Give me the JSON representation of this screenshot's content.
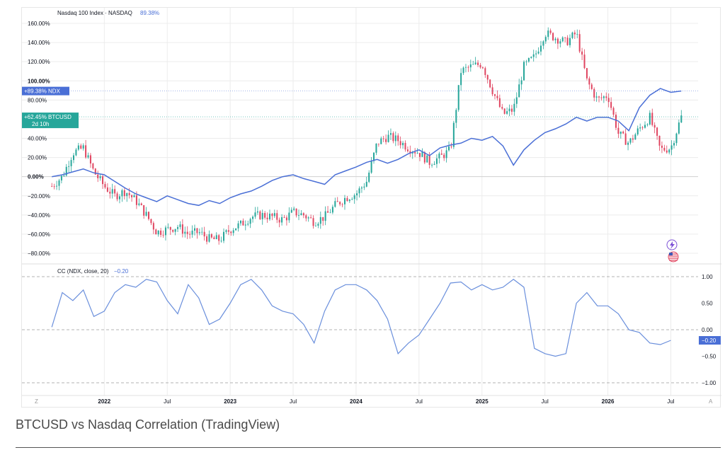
{
  "caption": "BTCUSD vs Nasdaq Correlation (TradingView)",
  "colors": {
    "ndx": "#4a6fd6",
    "up": "#26a69a",
    "down": "#e04560",
    "cc": "#6a8fdc",
    "grid": "#ececec"
  },
  "chart_data": [
    {
      "type": "line",
      "title": "Nasdaq 100 Index · NASDAQ",
      "title_value": "89.38%",
      "yticks": [
        "160.00%",
        "140.00%",
        "120.00%",
        "100.00%",
        "80.00%",
        "60.00%",
        "40.00%",
        "20.00%",
        "0.00%",
        "−20.00%",
        "−40.00%",
        "−60.00%",
        "−80.00%"
      ],
      "ylim": [
        -90,
        170
      ],
      "x_labels": [
        "2022",
        "Jul",
        "2023",
        "Jul",
        "2024",
        "Jul",
        "2025",
        "Jul",
        "2026",
        "Jul"
      ],
      "x_label_positions": [
        "2022-01",
        "2022-07",
        "2023-01",
        "2023-07",
        "2024-01",
        "2024-07",
        "2025-01",
        "2025-07",
        "2026-01",
        "2026-07"
      ],
      "series": [
        {
          "name": "NDX",
          "type": "line",
          "last_value": "+89.38%",
          "points": [
            [
              "2021-08",
              0
            ],
            [
              "2021-09",
              2
            ],
            [
              "2021-10",
              5
            ],
            [
              "2021-11",
              8
            ],
            [
              "2021-12",
              4
            ],
            [
              "2022-01",
              2
            ],
            [
              "2022-02",
              -5
            ],
            [
              "2022-03",
              -12
            ],
            [
              "2022-04",
              -18
            ],
            [
              "2022-05",
              -22
            ],
            [
              "2022-06",
              -26
            ],
            [
              "2022-07",
              -20
            ],
            [
              "2022-08",
              -24
            ],
            [
              "2022-09",
              -28
            ],
            [
              "2022-10",
              -30
            ],
            [
              "2022-11",
              -25
            ],
            [
              "2022-12",
              -28
            ],
            [
              "2023-01",
              -22
            ],
            [
              "2023-02",
              -18
            ],
            [
              "2023-03",
              -15
            ],
            [
              "2023-04",
              -10
            ],
            [
              "2023-05",
              -4
            ],
            [
              "2023-06",
              0
            ],
            [
              "2023-07",
              2
            ],
            [
              "2023-08",
              -2
            ],
            [
              "2023-09",
              -5
            ],
            [
              "2023-10",
              -8
            ],
            [
              "2023-11",
              2
            ],
            [
              "2023-12",
              6
            ],
            [
              "2024-01",
              10
            ],
            [
              "2024-02",
              15
            ],
            [
              "2024-03",
              18
            ],
            [
              "2024-04",
              14
            ],
            [
              "2024-05",
              18
            ],
            [
              "2024-06",
              24
            ],
            [
              "2024-07",
              28
            ],
            [
              "2024-08",
              22
            ],
            [
              "2024-09",
              30
            ],
            [
              "2024-10",
              33
            ],
            [
              "2024-11",
              35
            ],
            [
              "2024-12",
              40
            ],
            [
              "2025-01",
              38
            ],
            [
              "2025-02",
              42
            ],
            [
              "2025-03",
              32
            ],
            [
              "2025-04",
              12
            ],
            [
              "2025-05",
              28
            ],
            [
              "2025-06",
              38
            ],
            [
              "2025-07",
              46
            ],
            [
              "2025-08",
              50
            ],
            [
              "2025-09",
              55
            ],
            [
              "2025-10",
              62
            ],
            [
              "2025-11",
              58
            ],
            [
              "2025-12",
              62
            ],
            [
              "2026-01",
              62
            ],
            [
              "2026-02",
              58
            ],
            [
              "2026-03",
              48
            ],
            [
              "2026-04",
              72
            ],
            [
              "2026-05",
              85
            ],
            [
              "2026-06",
              92
            ],
            [
              "2026-07",
              88
            ],
            [
              "2026-08",
              89.38
            ]
          ]
        },
        {
          "name": "BTCUSD",
          "type": "candlestick",
          "last_value": "+62.45%",
          "countdown": "2d 10h",
          "closes": [
            [
              "2021-08",
              -10
            ],
            [
              "2021-09",
              0
            ],
            [
              "2021-10",
              25
            ],
            [
              "2021-11",
              30
            ],
            [
              "2021-12",
              5
            ],
            [
              "2022-01",
              -10
            ],
            [
              "2022-02",
              -20
            ],
            [
              "2022-03",
              -15
            ],
            [
              "2022-04",
              -25
            ],
            [
              "2022-05",
              -40
            ],
            [
              "2022-06",
              -58
            ],
            [
              "2022-07",
              -55
            ],
            [
              "2022-08",
              -52
            ],
            [
              "2022-09",
              -60
            ],
            [
              "2022-10",
              -58
            ],
            [
              "2022-11",
              -65
            ],
            [
              "2022-12",
              -66
            ],
            [
              "2023-01",
              -55
            ],
            [
              "2023-02",
              -50
            ],
            [
              "2023-03",
              -42
            ],
            [
              "2023-04",
              -40
            ],
            [
              "2023-05",
              -42
            ],
            [
              "2023-06",
              -45
            ],
            [
              "2023-07",
              -37
            ],
            [
              "2023-08",
              -40
            ],
            [
              "2023-09",
              -47
            ],
            [
              "2023-10",
              -42
            ],
            [
              "2023-11",
              -30
            ],
            [
              "2023-12",
              -22
            ],
            [
              "2024-01",
              -18
            ],
            [
              "2024-02",
              -5
            ],
            [
              "2024-03",
              35
            ],
            [
              "2024-04",
              42
            ],
            [
              "2024-05",
              38
            ],
            [
              "2024-06",
              30
            ],
            [
              "2024-07",
              25
            ],
            [
              "2024-08",
              15
            ],
            [
              "2024-09",
              20
            ],
            [
              "2024-10",
              28
            ],
            [
              "2024-11",
              110
            ],
            [
              "2024-12",
              115
            ],
            [
              "2025-01",
              118
            ],
            [
              "2025-02",
              90
            ],
            [
              "2025-03",
              65
            ],
            [
              "2025-04",
              70
            ],
            [
              "2025-05",
              115
            ],
            [
              "2025-06",
              125
            ],
            [
              "2025-07",
              150
            ],
            [
              "2025-08",
              145
            ],
            [
              "2025-09",
              140
            ],
            [
              "2025-10",
              150
            ],
            [
              "2025-11",
              100
            ],
            [
              "2025-12",
              80
            ],
            [
              "2026-01",
              85
            ],
            [
              "2026-02",
              45
            ],
            [
              "2026-03",
              35
            ],
            [
              "2026-04",
              50
            ],
            [
              "2026-05",
              62
            ],
            [
              "2026-06",
              28
            ],
            [
              "2026-07",
              30
            ],
            [
              "2026-08",
              62.45
            ]
          ]
        }
      ],
      "icons": [
        "lightning-icon",
        "us-flag-icon"
      ]
    },
    {
      "type": "line",
      "title": "CC (NDX, close, 20)",
      "title_value": "−0.20",
      "yticks": [
        "1.00",
        "0.50",
        "0.00",
        "−0.50",
        "−1.00"
      ],
      "ylim": [
        -1.1,
        1.1
      ],
      "dashed_levels": [
        1.0,
        0.0,
        -1.0
      ],
      "series": [
        {
          "name": "CC",
          "last_value": "−0.20",
          "points": [
            [
              "2021-08",
              0.05
            ],
            [
              "2021-09",
              0.7
            ],
            [
              "2021-10",
              0.55
            ],
            [
              "2021-11",
              0.75
            ],
            [
              "2021-12",
              0.25
            ],
            [
              "2022-01",
              0.35
            ],
            [
              "2022-02",
              0.7
            ],
            [
              "2022-03",
              0.85
            ],
            [
              "2022-04",
              0.8
            ],
            [
              "2022-05",
              0.95
            ],
            [
              "2022-06",
              0.9
            ],
            [
              "2022-07",
              0.55
            ],
            [
              "2022-08",
              0.3
            ],
            [
              "2022-09",
              0.85
            ],
            [
              "2022-10",
              0.6
            ],
            [
              "2022-11",
              0.1
            ],
            [
              "2022-12",
              0.2
            ],
            [
              "2023-01",
              0.5
            ],
            [
              "2023-02",
              0.85
            ],
            [
              "2023-03",
              0.95
            ],
            [
              "2023-04",
              0.75
            ],
            [
              "2023-05",
              0.45
            ],
            [
              "2023-06",
              0.35
            ],
            [
              "2023-07",
              0.3
            ],
            [
              "2023-08",
              0.1
            ],
            [
              "2023-09",
              -0.25
            ],
            [
              "2023-10",
              0.35
            ],
            [
              "2023-11",
              0.75
            ],
            [
              "2023-12",
              0.85
            ],
            [
              "2024-01",
              0.85
            ],
            [
              "2024-02",
              0.75
            ],
            [
              "2024-03",
              0.55
            ],
            [
              "2024-04",
              0.2
            ],
            [
              "2024-05",
              -0.45
            ],
            [
              "2024-06",
              -0.25
            ],
            [
              "2024-07",
              -0.1
            ],
            [
              "2024-08",
              0.2
            ],
            [
              "2024-09",
              0.5
            ],
            [
              "2024-10",
              0.88
            ],
            [
              "2024-11",
              0.9
            ],
            [
              "2024-12",
              0.75
            ],
            [
              "2025-01",
              0.85
            ],
            [
              "2025-02",
              0.75
            ],
            [
              "2025-03",
              0.8
            ],
            [
              "2025-04",
              0.95
            ],
            [
              "2025-05",
              0.8
            ],
            [
              "2025-06",
              -0.35
            ],
            [
              "2025-07",
              -0.45
            ],
            [
              "2025-08",
              -0.5
            ],
            [
              "2025-09",
              -0.45
            ],
            [
              "2025-10",
              0.5
            ],
            [
              "2025-11",
              0.7
            ],
            [
              "2025-12",
              0.45
            ],
            [
              "2026-01",
              0.45
            ],
            [
              "2026-02",
              0.3
            ],
            [
              "2026-03",
              0.0
            ],
            [
              "2026-04",
              -0.05
            ],
            [
              "2026-05",
              -0.25
            ],
            [
              "2026-06",
              -0.28
            ],
            [
              "2026-07",
              -0.2
            ]
          ]
        }
      ]
    }
  ],
  "timescale_buttons": {
    "left": "Z",
    "right": "A"
  }
}
